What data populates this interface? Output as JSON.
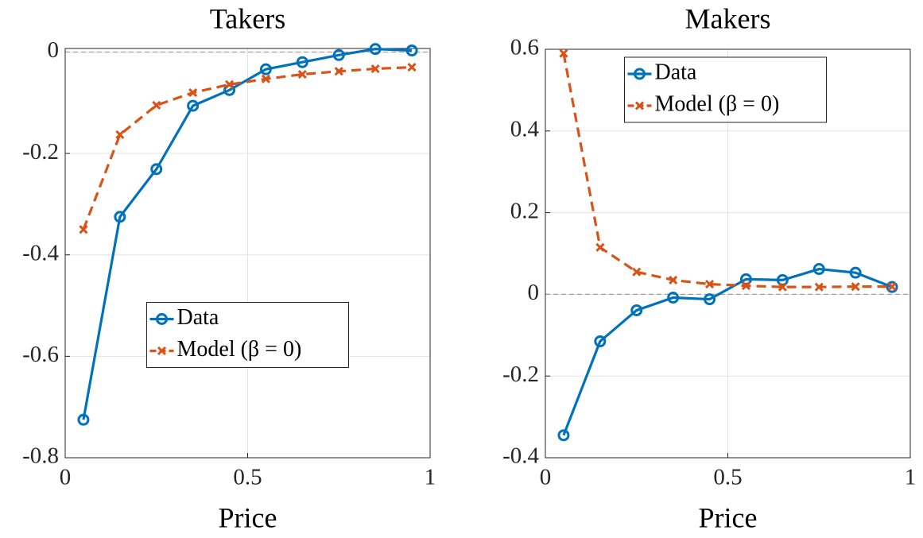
{
  "chart_data": [
    {
      "type": "line",
      "title": "Takers",
      "xlabel": "Price",
      "x": [
        0.05,
        0.15,
        0.25,
        0.35,
        0.45,
        0.55,
        0.65,
        0.75,
        0.85,
        0.95
      ],
      "series": [
        {
          "name": "Data",
          "color": "#0072bd",
          "marker": "circle",
          "dashed": false,
          "values": [
            -0.725,
            -0.325,
            -0.231,
            -0.106,
            -0.075,
            -0.034,
            -0.02,
            -0.006,
            0.006,
            0.003
          ]
        },
        {
          "name": "Model (β = 0)",
          "color": "#d95319",
          "marker": "x",
          "dashed": true,
          "values": [
            -0.35,
            -0.163,
            -0.105,
            -0.08,
            -0.064,
            -0.053,
            -0.044,
            -0.038,
            -0.033,
            -0.03
          ]
        }
      ],
      "xlim": [
        0,
        1
      ],
      "xticks": [
        0,
        0.5,
        1
      ],
      "ylim": [
        -0.8,
        0.007
      ],
      "yticks": [
        -0.8,
        -0.6,
        -0.4,
        -0.2,
        0
      ],
      "grid": true,
      "zero_line": true,
      "legend": "center"
    },
    {
      "type": "line",
      "title": "Makers",
      "xlabel": "Price",
      "x": [
        0.05,
        0.15,
        0.25,
        0.35,
        0.45,
        0.55,
        0.65,
        0.75,
        0.85,
        0.95
      ],
      "series": [
        {
          "name": "Data",
          "color": "#0072bd",
          "marker": "circle",
          "dashed": false,
          "values": [
            -0.345,
            -0.115,
            -0.039,
            -0.008,
            -0.012,
            0.037,
            0.035,
            0.062,
            0.053,
            0.018
          ]
        },
        {
          "name": "Model (β = 0)",
          "color": "#d95319",
          "marker": "x",
          "dashed": true,
          "values": [
            0.59,
            0.115,
            0.055,
            0.035,
            0.025,
            0.021,
            0.018,
            0.018,
            0.019,
            0.019
          ]
        }
      ],
      "xlim": [
        0,
        1
      ],
      "xticks": [
        0,
        0.5,
        1
      ],
      "ylim": [
        -0.4,
        0.6
      ],
      "yticks": [
        -0.4,
        -0.2,
        0,
        0.2,
        0.4,
        0.6
      ],
      "grid": true,
      "zero_line": true,
      "legend": "north"
    }
  ]
}
